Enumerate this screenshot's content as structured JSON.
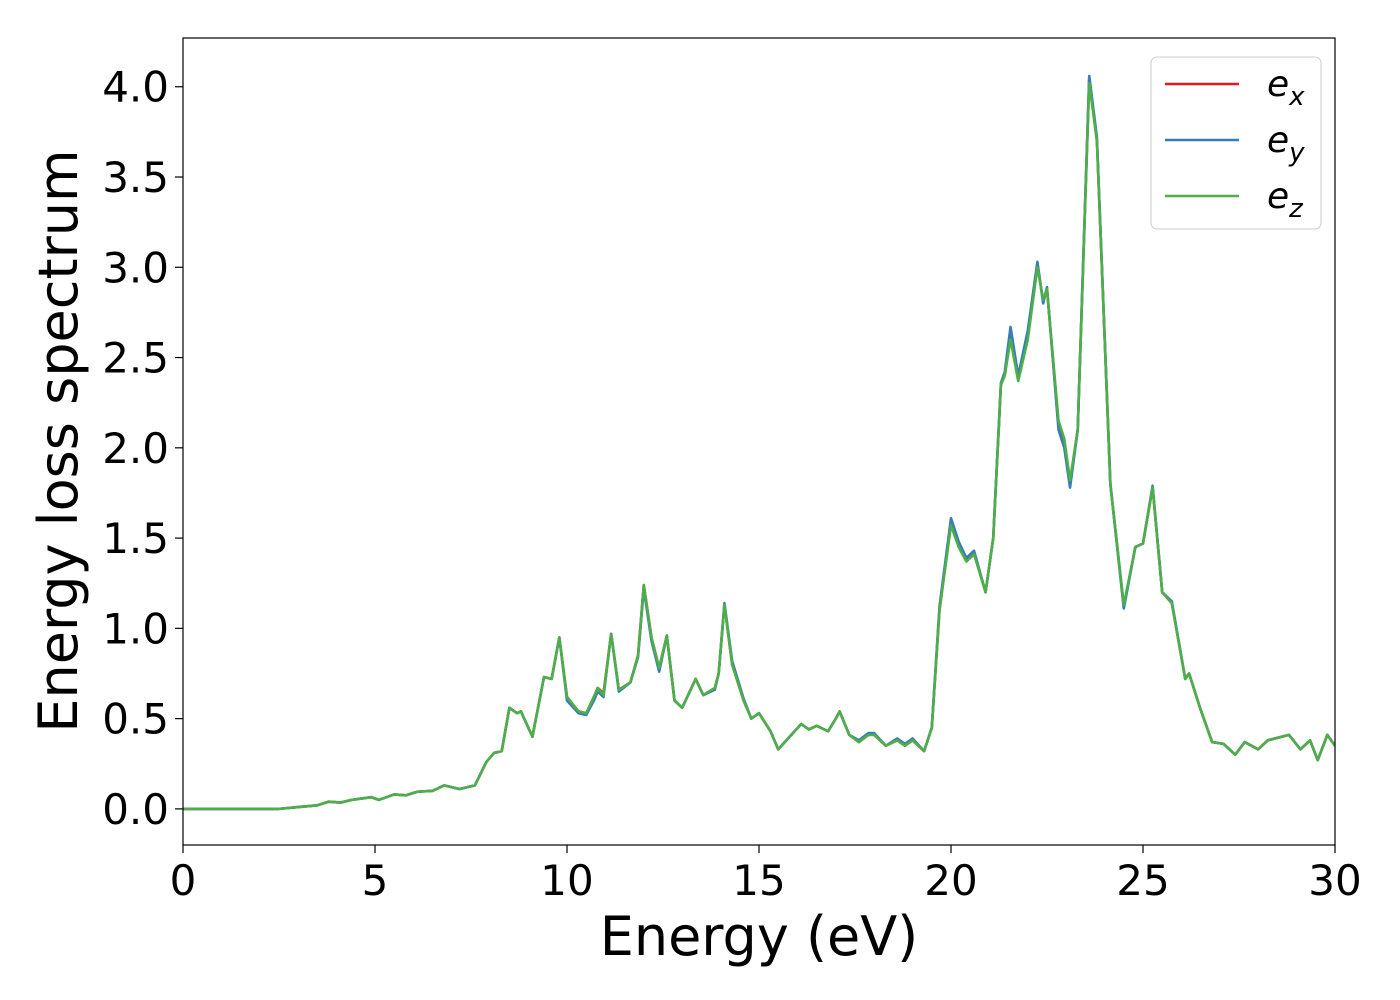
{
  "chart_data": {
    "type": "line",
    "xlabel": "Energy (eV)",
    "ylabel": "Energy loss spectrum",
    "x": [
      0,
      2.5,
      3,
      3.5,
      3.8,
      4.1,
      4.4,
      4.9,
      5.1,
      5.5,
      5.8,
      6.1,
      6.5,
      6.8,
      7.2,
      7.6,
      7.9,
      8.1,
      8.3,
      8.5,
      8.7,
      8.8,
      9.1,
      9.4,
      9.6,
      9.8,
      10,
      10.3,
      10.5,
      10.7,
      10.8,
      10.95,
      11.15,
      11.35,
      11.65,
      11.85,
      12,
      12.2,
      12.4,
      12.6,
      12.8,
      13,
      13.35,
      13.55,
      13.85,
      13.95,
      14.1,
      14.3,
      14.6,
      14.8,
      15,
      15.3,
      15.5,
      15.8,
      16.1,
      16.3,
      16.5,
      16.8,
      17,
      17.1,
      17.35,
      17.6,
      17.85,
      18,
      18.3,
      18.6,
      18.8,
      19,
      19.3,
      19.5,
      19.7,
      20,
      20.2,
      20.4,
      20.6,
      20.9,
      21.1,
      21.3,
      21.4,
      21.55,
      21.75,
      22,
      22.25,
      22.4,
      22.5,
      22.8,
      22.95,
      23.1,
      23.3,
      23.6,
      23.8,
      24.15,
      24.5,
      24.8,
      25,
      25.25,
      25.5,
      25.75,
      26.1,
      26.2,
      26.5,
      26.8,
      27.1,
      27.4,
      27.65,
      28,
      28.25,
      28.8,
      29.1,
      29.35,
      29.55,
      29.8,
      30
    ],
    "series": [
      {
        "name": "e_x",
        "color": "#e41a1c",
        "values": [
          0,
          0,
          0.01,
          0.02,
          0.04,
          0.035,
          0.05,
          0.065,
          0.05,
          0.08,
          0.075,
          0.095,
          0.1,
          0.13,
          0.11,
          0.13,
          0.26,
          0.31,
          0.32,
          0.56,
          0.53,
          0.54,
          0.4,
          0.73,
          0.72,
          0.95,
          0.62,
          0.54,
          0.53,
          0.62,
          0.67,
          0.64,
          0.97,
          0.66,
          0.7,
          0.85,
          1.24,
          0.95,
          0.78,
          0.96,
          0.6,
          0.56,
          0.72,
          0.63,
          0.67,
          0.75,
          1.13,
          0.8,
          0.6,
          0.5,
          0.53,
          0.43,
          0.33,
          0.4,
          0.47,
          0.44,
          0.46,
          0.43,
          0.5,
          0.54,
          0.41,
          0.37,
          0.41,
          0.41,
          0.35,
          0.38,
          0.35,
          0.38,
          0.32,
          0.45,
          1.1,
          1.59,
          1.46,
          1.38,
          1.42,
          1.2,
          1.5,
          2.35,
          2.4,
          2.63,
          2.39,
          2.62,
          3.02,
          2.81,
          2.88,
          2.12,
          2.03,
          1.8,
          2.1,
          4.05,
          3.7,
          1.8,
          1.12,
          1.45,
          1.47,
          1.78,
          1.2,
          1.14,
          0.72,
          0.75,
          0.55,
          0.37,
          0.36,
          0.3,
          0.37,
          0.33,
          0.38,
          0.41,
          0.33,
          0.38,
          0.27,
          0.41,
          0.35
        ]
      },
      {
        "name": "e_y",
        "color": "#377eb8",
        "values": [
          0,
          0,
          0.01,
          0.02,
          0.04,
          0.035,
          0.05,
          0.065,
          0.05,
          0.08,
          0.075,
          0.095,
          0.1,
          0.13,
          0.11,
          0.13,
          0.26,
          0.31,
          0.32,
          0.56,
          0.53,
          0.54,
          0.4,
          0.73,
          0.72,
          0.95,
          0.6,
          0.53,
          0.52,
          0.6,
          0.65,
          0.62,
          0.97,
          0.65,
          0.7,
          0.84,
          1.22,
          0.93,
          0.76,
          0.96,
          0.6,
          0.56,
          0.72,
          0.63,
          0.66,
          0.75,
          1.14,
          0.82,
          0.61,
          0.5,
          0.53,
          0.43,
          0.33,
          0.4,
          0.47,
          0.44,
          0.46,
          0.43,
          0.5,
          0.54,
          0.41,
          0.38,
          0.42,
          0.42,
          0.35,
          0.39,
          0.36,
          0.39,
          0.32,
          0.45,
          1.12,
          1.61,
          1.48,
          1.39,
          1.43,
          1.2,
          1.5,
          2.36,
          2.42,
          2.67,
          2.4,
          2.65,
          3.03,
          2.8,
          2.89,
          2.1,
          2.0,
          1.78,
          2.1,
          4.06,
          3.72,
          1.8,
          1.11,
          1.45,
          1.47,
          1.79,
          1.2,
          1.15,
          0.72,
          0.75,
          0.55,
          0.37,
          0.36,
          0.3,
          0.37,
          0.33,
          0.38,
          0.41,
          0.33,
          0.38,
          0.27,
          0.41,
          0.35
        ]
      },
      {
        "name": "e_z",
        "color": "#4daf4a",
        "values": [
          0,
          0,
          0.01,
          0.02,
          0.04,
          0.035,
          0.05,
          0.065,
          0.05,
          0.08,
          0.075,
          0.095,
          0.1,
          0.13,
          0.11,
          0.13,
          0.26,
          0.31,
          0.32,
          0.56,
          0.53,
          0.54,
          0.4,
          0.73,
          0.72,
          0.95,
          0.62,
          0.54,
          0.53,
          0.62,
          0.67,
          0.63,
          0.97,
          0.66,
          0.7,
          0.85,
          1.24,
          0.95,
          0.78,
          0.96,
          0.6,
          0.56,
          0.72,
          0.63,
          0.67,
          0.75,
          1.13,
          0.8,
          0.6,
          0.5,
          0.53,
          0.43,
          0.33,
          0.4,
          0.47,
          0.44,
          0.46,
          0.43,
          0.5,
          0.54,
          0.41,
          0.37,
          0.41,
          0.41,
          0.35,
          0.38,
          0.35,
          0.38,
          0.32,
          0.45,
          1.1,
          1.57,
          1.45,
          1.37,
          1.41,
          1.2,
          1.5,
          2.35,
          2.4,
          2.6,
          2.37,
          2.6,
          3.0,
          2.82,
          2.88,
          2.15,
          2.05,
          1.82,
          2.1,
          4.02,
          3.7,
          1.8,
          1.13,
          1.45,
          1.47,
          1.78,
          1.2,
          1.14,
          0.72,
          0.75,
          0.55,
          0.37,
          0.36,
          0.3,
          0.37,
          0.33,
          0.38,
          0.41,
          0.33,
          0.38,
          0.27,
          0.41,
          0.35
        ]
      }
    ],
    "xlim": [
      0,
      30
    ],
    "xticks": [
      0,
      5,
      10,
      15,
      20,
      25,
      30
    ],
    "ylim": [
      -0.2,
      4.27
    ],
    "yticks": [
      {
        "value": 0,
        "label": "0.0"
      },
      {
        "value": 0.5,
        "label": "0.5"
      },
      {
        "value": 1,
        "label": "1.0"
      },
      {
        "value": 1.5,
        "label": "1.5"
      },
      {
        "value": 2,
        "label": "2.0"
      },
      {
        "value": 2.5,
        "label": "2.5"
      },
      {
        "value": 3,
        "label": "3.0"
      },
      {
        "value": 3.5,
        "label": "3.5"
      },
      {
        "value": 4,
        "label": "4.0"
      }
    ],
    "legend": "upper right",
    "grid": false
  }
}
